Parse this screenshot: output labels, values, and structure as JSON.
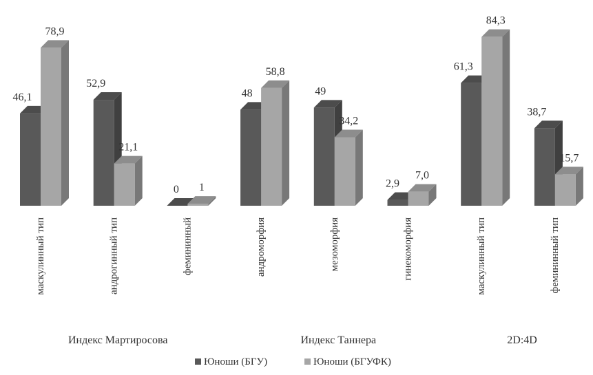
{
  "chart_data": {
    "type": "bar",
    "style": "3d-clustered-column",
    "grid": false,
    "legend_position": "bottom",
    "ylim": [
      0,
      100
    ],
    "categories": [
      "маскулинный тип",
      "андрогинный тип",
      "фемининный",
      "андроморфия",
      "мезоморфия",
      "гинекоморфия",
      "маскулинный тип",
      "фемининный тип"
    ],
    "groups": [
      {
        "label": "Индекс Мартиросова",
        "categories": [
          0,
          1,
          2
        ]
      },
      {
        "label": "Индекс Таннера",
        "categories": [
          3,
          4,
          5
        ]
      },
      {
        "label": "2D:4D",
        "categories": [
          6,
          7
        ]
      }
    ],
    "series": [
      {
        "name": "Юноши (БГУ)",
        "color": "#595959",
        "values": [
          46.1,
          52.9,
          0,
          48,
          49,
          2.9,
          61.3,
          38.7
        ],
        "labels": [
          "46,1",
          "52,9",
          "0",
          "48",
          "49",
          "2,9",
          "61,3",
          "38,7"
        ]
      },
      {
        "name": "Юноши (БГУФК)",
        "color": "#a6a6a6",
        "values": [
          78.9,
          21.1,
          1,
          58.8,
          34.2,
          7.0,
          84.3,
          15.7
        ],
        "labels": [
          "78,9",
          "21,1",
          "1",
          "58,8",
          "34,2",
          "7,0",
          "84,3",
          "15,7"
        ]
      }
    ]
  }
}
